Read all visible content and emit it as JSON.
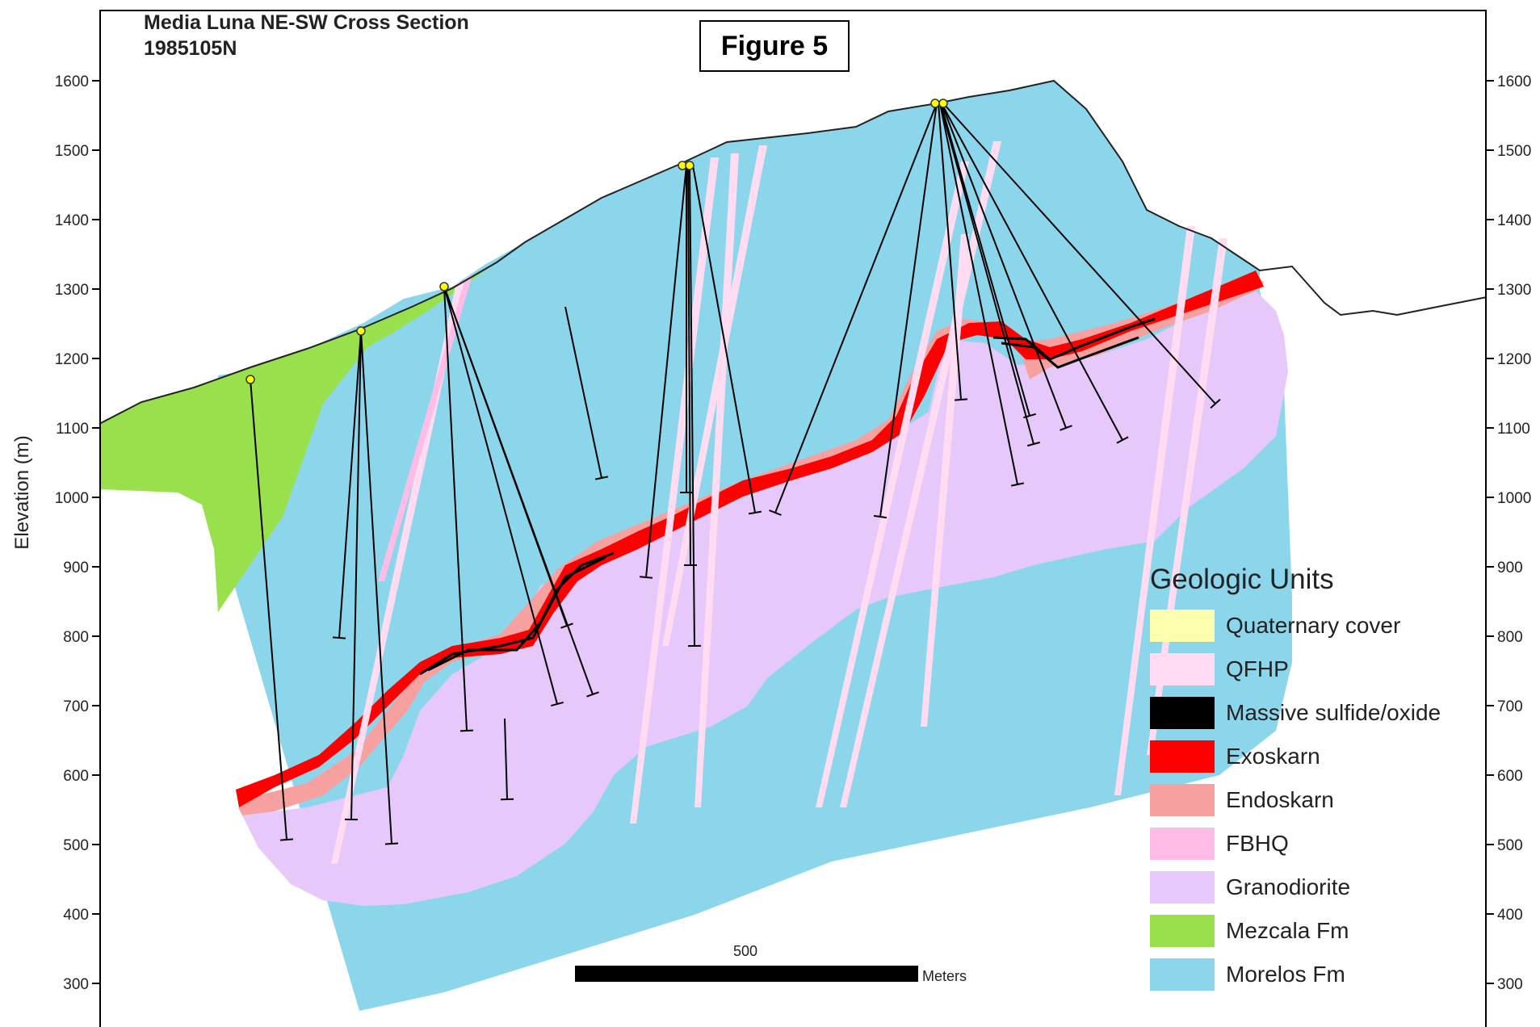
{
  "title_lines": [
    "Media Luna NE-SW Cross Section",
    "1985105N"
  ],
  "figure_label": "Figure 5",
  "y_axis": {
    "label": "Elevation (m)",
    "ticks": [
      "1600",
      "1500",
      "1400",
      "1300",
      "1200",
      "1100",
      "1000",
      "900",
      "800",
      "700",
      "600",
      "500",
      "400",
      "300"
    ]
  },
  "scale_bar": {
    "value_label": "500",
    "unit_label": "Meters"
  },
  "legend": {
    "title": "Geologic Units",
    "items": [
      {
        "label": "Quaternary cover",
        "color": "#ffffb0"
      },
      {
        "label": "QFHP",
        "color": "#ffdcf2"
      },
      {
        "label": "Massive sulfide/oxide",
        "color": "#000000"
      },
      {
        "label": "Exoskarn",
        "color": "#ff0000"
      },
      {
        "label": "Endoskarn",
        "color": "#f7a0a0"
      },
      {
        "label": "FBHQ",
        "color": "#ffbce6"
      },
      {
        "label": "Granodiorite",
        "color": "#e6c8fa"
      },
      {
        "label": "Mezcala Fm",
        "color": "#98e04c"
      },
      {
        "label": "Morelos Fm",
        "color": "#8cd6ec"
      }
    ]
  },
  "colors": {
    "morelos": "#8cd6ec",
    "mezcala": "#98e04c",
    "granodiorite": "#e6c8fa",
    "exoskarn": "#ff0000",
    "endoskarn": "#f7a0a0",
    "qfhp": "#ffdcf2",
    "fbhq": "#ffbce6",
    "sulfide": "#000000",
    "collar": "#ffff00"
  }
}
